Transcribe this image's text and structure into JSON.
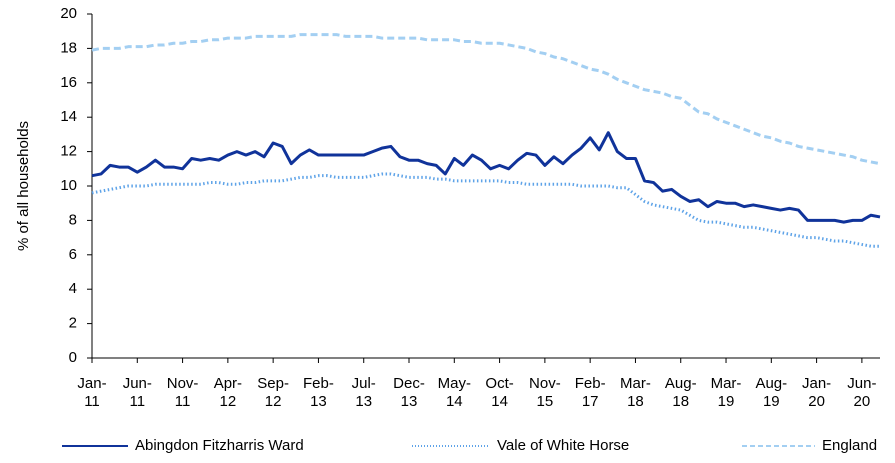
{
  "chart_data": {
    "type": "line",
    "y_label": "% of all households",
    "categories": [
      "Jan-11",
      null,
      null,
      null,
      null,
      "Jun-11",
      null,
      null,
      null,
      null,
      "Nov-11",
      null,
      null,
      null,
      null,
      "Apr-12",
      null,
      null,
      null,
      null,
      "Sep-12",
      null,
      null,
      null,
      null,
      "Feb-13",
      null,
      null,
      null,
      null,
      "Jul-13",
      null,
      null,
      null,
      null,
      "Dec-13",
      null,
      null,
      null,
      null,
      "May-14",
      null,
      null,
      null,
      null,
      "Oct-14",
      null,
      null,
      null,
      null,
      "Nov-15",
      null,
      null,
      null,
      null,
      "Feb-17",
      null,
      null,
      null,
      null,
      "Mar-18",
      null,
      null,
      null,
      null,
      "Aug-18",
      null,
      null,
      null,
      null,
      "Mar-19",
      null,
      null,
      null,
      null,
      "Aug-19",
      null,
      null,
      null,
      null,
      "Jan-20",
      null,
      null,
      null,
      null,
      "Jun-20",
      null,
      null
    ],
    "series": [
      {
        "name": "Abingdon Fitzharris Ward",
        "color": "#10339a",
        "style": "solid",
        "values": [
          10.6,
          10.7,
          11.2,
          11.1,
          11.1,
          10.8,
          11.1,
          11.5,
          11.1,
          11.1,
          11.0,
          11.6,
          11.5,
          11.6,
          11.5,
          11.8,
          12.0,
          11.8,
          12.0,
          11.7,
          12.5,
          12.3,
          11.3,
          11.8,
          12.1,
          11.8,
          11.8,
          11.8,
          11.8,
          11.8,
          11.8,
          12.0,
          12.2,
          12.3,
          11.7,
          11.5,
          11.5,
          11.3,
          11.2,
          10.7,
          11.6,
          11.2,
          11.8,
          11.5,
          11.0,
          11.2,
          11.0,
          11.5,
          11.9,
          11.8,
          11.2,
          11.7,
          11.3,
          11.8,
          12.2,
          12.8,
          12.1,
          13.1,
          12.0,
          11.6,
          11.6,
          10.3,
          10.2,
          9.7,
          9.8,
          9.4,
          9.1,
          9.2,
          8.8,
          9.1,
          9.0,
          9.0,
          8.8,
          8.9,
          8.8,
          8.7,
          8.6,
          8.7,
          8.6,
          8.0,
          8.0,
          8.0,
          8.0,
          7.9,
          8.0,
          8.0,
          8.3,
          8.2
        ]
      },
      {
        "name": "Vale of White Horse",
        "color": "#5ea3e8",
        "style": "dotted",
        "values": [
          9.6,
          9.7,
          9.8,
          9.9,
          10.0,
          10.0,
          10.0,
          10.1,
          10.1,
          10.1,
          10.1,
          10.1,
          10.1,
          10.2,
          10.2,
          10.1,
          10.1,
          10.2,
          10.2,
          10.3,
          10.3,
          10.3,
          10.4,
          10.5,
          10.5,
          10.6,
          10.6,
          10.5,
          10.5,
          10.5,
          10.5,
          10.6,
          10.7,
          10.7,
          10.6,
          10.5,
          10.5,
          10.5,
          10.4,
          10.4,
          10.3,
          10.3,
          10.3,
          10.3,
          10.3,
          10.3,
          10.2,
          10.2,
          10.1,
          10.1,
          10.1,
          10.1,
          10.1,
          10.1,
          10.0,
          10.0,
          10.0,
          10.0,
          9.9,
          9.9,
          9.5,
          9.1,
          8.9,
          8.8,
          8.7,
          8.6,
          8.3,
          8.0,
          7.9,
          7.9,
          7.8,
          7.7,
          7.6,
          7.6,
          7.5,
          7.4,
          7.3,
          7.2,
          7.1,
          7.0,
          7.0,
          6.9,
          6.8,
          6.8,
          6.7,
          6.6,
          6.5,
          6.5
        ]
      },
      {
        "name": "England",
        "color": "#a3cff2",
        "style": "dashed",
        "values": [
          17.9,
          18.0,
          18.0,
          18.0,
          18.1,
          18.1,
          18.1,
          18.2,
          18.2,
          18.3,
          18.3,
          18.4,
          18.4,
          18.5,
          18.5,
          18.6,
          18.6,
          18.6,
          18.7,
          18.7,
          18.7,
          18.7,
          18.7,
          18.8,
          18.8,
          18.8,
          18.8,
          18.8,
          18.7,
          18.7,
          18.7,
          18.7,
          18.6,
          18.6,
          18.6,
          18.6,
          18.6,
          18.5,
          18.5,
          18.5,
          18.5,
          18.4,
          18.4,
          18.3,
          18.3,
          18.3,
          18.2,
          18.1,
          18.0,
          17.8,
          17.7,
          17.5,
          17.4,
          17.2,
          17.0,
          16.8,
          16.7,
          16.5,
          16.2,
          16.0,
          15.8,
          15.6,
          15.5,
          15.4,
          15.2,
          15.1,
          14.7,
          14.3,
          14.2,
          13.9,
          13.7,
          13.5,
          13.3,
          13.1,
          12.9,
          12.8,
          12.6,
          12.5,
          12.3,
          12.2,
          12.1,
          12.0,
          11.9,
          11.8,
          11.7,
          11.5,
          11.4,
          11.3
        ]
      }
    ],
    "ylim": [
      0,
      20
    ],
    "yticks": [
      0,
      2,
      4,
      6,
      8,
      10,
      12,
      14,
      16,
      18,
      20
    ],
    "grid": false
  }
}
